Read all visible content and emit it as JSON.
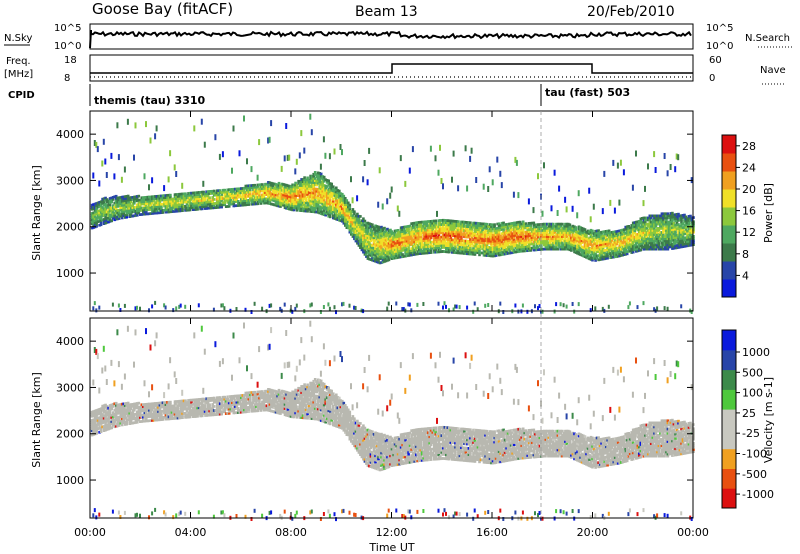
{
  "header": {
    "station": "Goose Bay (fitACF)",
    "beam": "Beam 13",
    "date": "20/Feb/2010"
  },
  "panels_top": {
    "nsky_label": "N.Sky",
    "nsearch_label": "N.Search",
    "freq_label_line1": "Freq.",
    "freq_label_line2": "[MHz]",
    "nave_label": "Nave",
    "cpid_label": "CPID",
    "nsky_ticks": [
      "10^5",
      "10^0"
    ],
    "nsearch_ticks": [
      "10^5",
      "10^0"
    ],
    "freq_ticks": [
      "18",
      "8"
    ],
    "nave_ticks": [
      "60",
      "0"
    ],
    "cpid_segments": [
      {
        "label": "themis (tau) 3310",
        "start_hour": 0
      },
      {
        "label": "tau (fast) 503",
        "start_hour": 18.0
      }
    ]
  },
  "colors": {
    "power": [
      "#0a1adc",
      "#2845a8",
      "#3c7a4a",
      "#4ea860",
      "#8cc83c",
      "#f0e028",
      "#f0a020",
      "#e85010",
      "#dc1010"
    ],
    "velocity": [
      "#dc1010",
      "#e85010",
      "#f0a020",
      "#c8c8c0",
      "#c8c8c0",
      "#4ec83c",
      "#3c8a4a",
      "#2845a8",
      "#0a1adc"
    ],
    "ground": "#b8b8b0"
  },
  "chart_data": [
    {
      "type": "heatmap",
      "title": "",
      "xlabel": "",
      "ylabel": "Slant Range [km]",
      "x_range_hours": [
        0,
        24
      ],
      "xticks": [
        "00:00",
        "04:00",
        "08:00",
        "12:00",
        "16:00",
        "20:00",
        "00:00"
      ],
      "ylim": [
        180,
        4500
      ],
      "yticks": [
        1000,
        2000,
        3000,
        4000
      ],
      "colorbar_label": "Power [dB]",
      "colorbar_ticks": [
        4,
        8,
        12,
        16,
        20,
        24,
        28
      ],
      "colorbar_range": [
        0,
        30
      ],
      "echo_bands": [
        {
          "hours": [
            0,
            0.5,
            1,
            2,
            3,
            4,
            5,
            6,
            7,
            8,
            9,
            10,
            10.5,
            11,
            11.5,
            12,
            13,
            14,
            15,
            16,
            17,
            18,
            19,
            20,
            21,
            22,
            23,
            24
          ],
          "low_km": [
            1950,
            2050,
            2150,
            2250,
            2300,
            2350,
            2400,
            2450,
            2500,
            2350,
            2300,
            2100,
            1700,
            1300,
            1200,
            1300,
            1400,
            1450,
            1400,
            1350,
            1450,
            1500,
            1500,
            1250,
            1350,
            1500,
            1500,
            1600
          ],
          "high_km": [
            2450,
            2600,
            2650,
            2650,
            2700,
            2750,
            2800,
            2850,
            2950,
            2900,
            3200,
            2700,
            2300,
            2100,
            2000,
            1900,
            2100,
            2150,
            2100,
            2050,
            2100,
            2050,
            2050,
            1900,
            1900,
            2200,
            2300,
            2200
          ],
          "peak_db": [
            14,
            16,
            16,
            17,
            18,
            18,
            19,
            20,
            22,
            24,
            22,
            22,
            20,
            18,
            20,
            24,
            24,
            26,
            24,
            24,
            26,
            22,
            22,
            22,
            22,
            18,
            16,
            16
          ]
        }
      ],
      "near_range_km": [
        200,
        400
      ]
    },
    {
      "type": "heatmap",
      "title": "",
      "xlabel": "Time UT",
      "ylabel": "Slant Range [km]",
      "x_range_hours": [
        0,
        24
      ],
      "xticks": [
        "00:00",
        "04:00",
        "08:00",
        "12:00",
        "16:00",
        "20:00",
        "00:00"
      ],
      "ylim": [
        180,
        4500
      ],
      "yticks": [
        1000,
        2000,
        3000,
        4000
      ],
      "colorbar_label": "Velocity [m s-1]",
      "colorbar_ticks": [
        1000,
        500,
        100,
        25,
        -25,
        -100,
        -500,
        -1000
      ],
      "colorbar_range": [
        -1500,
        1500
      ],
      "ground_scatter_dominant": true
    }
  ]
}
